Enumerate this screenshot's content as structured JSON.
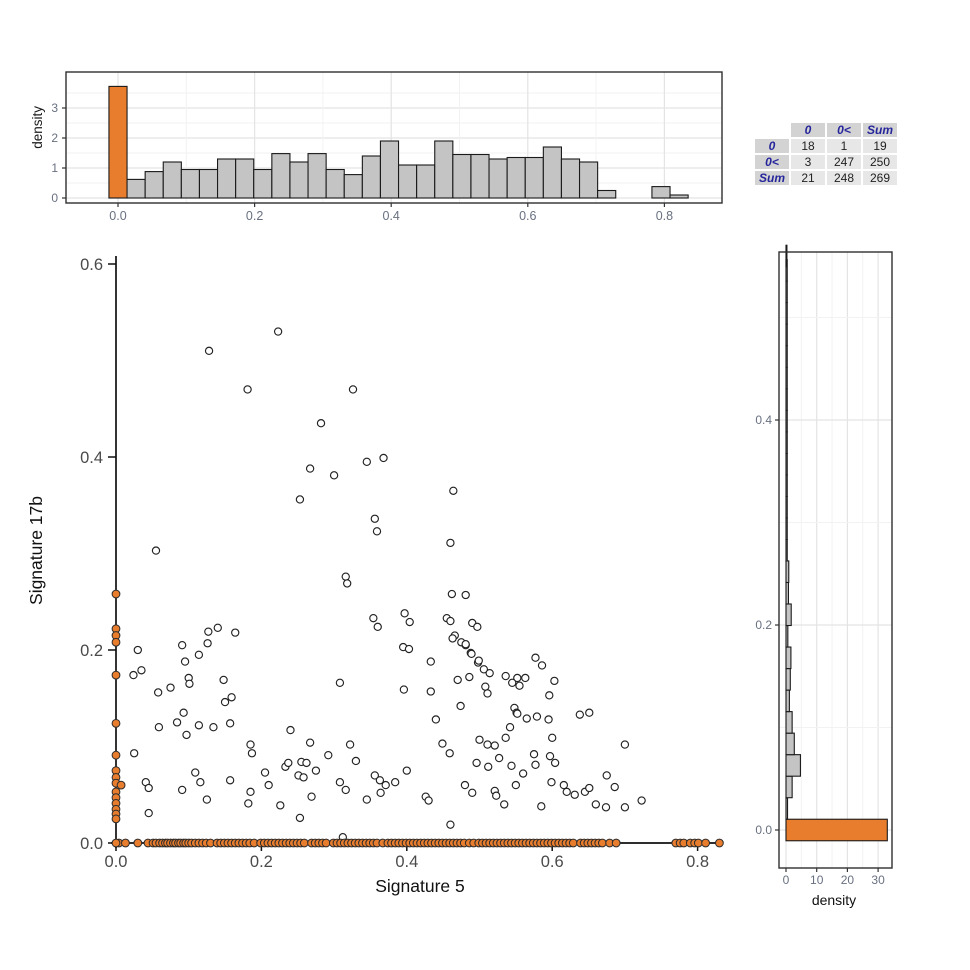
{
  "colors": {
    "orange": "#E87D2E",
    "gray_fill": "#C4C4C4",
    "bar_stroke": "#1A1A1A",
    "axis_line": "#111111",
    "panel_border": "#2F2F2F",
    "grid_major": "#E4E4E4",
    "grid_minor": "#F2F2F2",
    "tick_text": "#687080",
    "table_header_bg": "#D3D3D3",
    "table_cell_bg": "#E7E7E7",
    "table_header_text": "#26269C"
  },
  "table": {
    "corner": "",
    "col_headers": [
      "0",
      "0<",
      "Sum"
    ],
    "rows": [
      {
        "header": "0",
        "cells": [
          "18",
          "1",
          "19"
        ]
      },
      {
        "header": "0<",
        "cells": [
          "3",
          "247",
          "250"
        ]
      },
      {
        "header": "Sum",
        "cells": [
          "21",
          "248",
          "269"
        ]
      }
    ]
  },
  "chart_data": [
    {
      "id": "top_marginal_histogram",
      "type": "bar",
      "role": "marginal-density-of-x",
      "xlabel": "",
      "ylabel": "density",
      "x_ticks": [
        0.0,
        0.2,
        0.4,
        0.6,
        0.8
      ],
      "y_ticks": [
        0,
        1,
        2,
        3
      ],
      "xlim": [
        -0.03,
        0.885
      ],
      "ylim": [
        0,
        3.9
      ],
      "bin_start": -0.01325,
      "binwidth": 0.0265,
      "highlight_index": 0,
      "values": [
        3.72,
        0.62,
        0.88,
        1.2,
        0.95,
        0.95,
        1.3,
        1.3,
        0.95,
        1.48,
        1.2,
        1.48,
        0.95,
        0.78,
        1.4,
        1.9,
        1.1,
        1.1,
        1.9,
        1.45,
        1.45,
        1.3,
        1.35,
        1.35,
        1.7,
        1.3,
        1.2,
        0.25,
        0.0,
        0.0,
        0.38,
        0.1
      ]
    },
    {
      "id": "scatter",
      "type": "scatter",
      "xlabel": "Signature 5",
      "ylabel": "Signature 17b",
      "x_ticks": [
        0.0,
        0.2,
        0.4,
        0.6,
        0.8
      ],
      "y_ticks": [
        0.0,
        0.2,
        0.4,
        0.6
      ],
      "xlim": [
        0,
        0.835
      ],
      "ylim": [
        0,
        0.61
      ],
      "point_style": {
        "open": "white fill, black outline",
        "zero": "orange filled"
      },
      "open_points": [
        [
          0.223,
          0.53
        ],
        [
          0.128,
          0.51
        ],
        [
          0.181,
          0.47
        ],
        [
          0.326,
          0.47
        ],
        [
          0.282,
          0.435
        ],
        [
          0.345,
          0.395
        ],
        [
          0.368,
          0.399
        ],
        [
          0.267,
          0.388
        ],
        [
          0.3,
          0.381
        ],
        [
          0.253,
          0.356
        ],
        [
          0.464,
          0.365
        ],
        [
          0.356,
          0.336
        ],
        [
          0.359,
          0.323
        ],
        [
          0.46,
          0.311
        ],
        [
          0.055,
          0.303
        ],
        [
          0.316,
          0.276
        ],
        [
          0.318,
          0.269
        ],
        [
          0.462,
          0.258
        ],
        [
          0.481,
          0.257
        ],
        [
          0.455,
          0.233
        ],
        [
          0.49,
          0.228
        ],
        [
          0.466,
          0.215
        ],
        [
          0.475,
          0.208
        ],
        [
          0.481,
          0.205
        ],
        [
          0.488,
          0.197
        ],
        [
          0.498,
          0.187
        ],
        [
          0.433,
          0.188
        ],
        [
          0.397,
          0.238
        ],
        [
          0.404,
          0.229
        ],
        [
          0.395,
          0.203
        ],
        [
          0.354,
          0.233
        ],
        [
          0.36,
          0.224
        ],
        [
          0.403,
          0.201
        ],
        [
          0.577,
          0.192
        ],
        [
          0.563,
          0.171
        ],
        [
          0.586,
          0.184
        ],
        [
          0.603,
          0.168
        ],
        [
          0.127,
          0.219
        ],
        [
          0.14,
          0.223
        ],
        [
          0.164,
          0.218
        ],
        [
          0.126,
          0.207
        ],
        [
          0.091,
          0.205
        ],
        [
          0.03,
          0.2
        ],
        [
          0.114,
          0.195
        ],
        [
          0.095,
          0.188
        ],
        [
          0.035,
          0.179
        ],
        [
          0.024,
          0.174
        ],
        [
          0.46,
          0.23
        ],
        [
          0.497,
          0.224
        ],
        [
          0.075,
          0.161
        ],
        [
          0.1,
          0.171
        ],
        [
          0.148,
          0.169
        ],
        [
          0.159,
          0.151
        ],
        [
          0.058,
          0.156
        ],
        [
          0.059,
          0.12
        ],
        [
          0.084,
          0.125
        ],
        [
          0.114,
          0.122
        ],
        [
          0.097,
          0.112
        ],
        [
          0.134,
          0.12
        ],
        [
          0.157,
          0.124
        ],
        [
          0.101,
          0.165
        ],
        [
          0.15,
          0.146
        ],
        [
          0.093,
          0.135
        ],
        [
          0.025,
          0.093
        ],
        [
          0.041,
          0.063
        ],
        [
          0.045,
          0.057
        ],
        [
          0.109,
          0.073
        ],
        [
          0.116,
          0.063
        ],
        [
          0.091,
          0.055
        ],
        [
          0.125,
          0.045
        ],
        [
          0.157,
          0.065
        ],
        [
          0.185,
          0.102
        ],
        [
          0.187,
          0.093
        ],
        [
          0.205,
          0.073
        ],
        [
          0.233,
          0.079
        ],
        [
          0.237,
          0.083
        ],
        [
          0.255,
          0.084
        ],
        [
          0.262,
          0.083
        ],
        [
          0.251,
          0.07
        ],
        [
          0.258,
          0.068
        ],
        [
          0.269,
          0.048
        ],
        [
          0.253,
          0.026
        ],
        [
          0.185,
          0.053
        ],
        [
          0.182,
          0.041
        ],
        [
          0.226,
          0.039
        ],
        [
          0.24,
          0.117
        ],
        [
          0.267,
          0.104
        ],
        [
          0.292,
          0.091
        ],
        [
          0.322,
          0.102
        ],
        [
          0.308,
          0.063
        ],
        [
          0.316,
          0.055
        ],
        [
          0.356,
          0.07
        ],
        [
          0.363,
          0.065
        ],
        [
          0.384,
          0.063
        ],
        [
          0.364,
          0.052
        ],
        [
          0.371,
          0.06
        ],
        [
          0.312,
          0.006
        ],
        [
          0.308,
          0.166
        ],
        [
          0.396,
          0.159
        ],
        [
          0.426,
          0.048
        ],
        [
          0.43,
          0.044
        ],
        [
          0.46,
          0.019
        ],
        [
          0.045,
          0.031
        ],
        [
          0.47,
          0.169
        ],
        [
          0.486,
          0.172
        ],
        [
          0.508,
          0.162
        ],
        [
          0.536,
          0.173
        ],
        [
          0.552,
          0.171
        ],
        [
          0.555,
          0.163
        ],
        [
          0.596,
          0.153
        ],
        [
          0.474,
          0.142
        ],
        [
          0.548,
          0.14
        ],
        [
          0.551,
          0.135
        ],
        [
          0.542,
          0.12
        ],
        [
          0.536,
          0.109
        ],
        [
          0.579,
          0.131
        ],
        [
          0.638,
          0.133
        ],
        [
          0.651,
          0.135
        ],
        [
          0.6,
          0.109
        ],
        [
          0.449,
          0.103
        ],
        [
          0.459,
          0.093
        ],
        [
          0.5,
          0.107
        ],
        [
          0.511,
          0.102
        ],
        [
          0.521,
          0.101
        ],
        [
          0.527,
          0.088
        ],
        [
          0.496,
          0.083
        ],
        [
          0.512,
          0.079
        ],
        [
          0.544,
          0.08
        ],
        [
          0.575,
          0.092
        ],
        [
          0.577,
          0.081
        ],
        [
          0.597,
          0.09
        ],
        [
          0.604,
          0.083
        ],
        [
          0.599,
          0.063
        ],
        [
          0.616,
          0.06
        ],
        [
          0.62,
          0.053
        ],
        [
          0.631,
          0.05
        ],
        [
          0.645,
          0.053
        ],
        [
          0.651,
          0.057
        ],
        [
          0.675,
          0.07
        ],
        [
          0.686,
          0.058
        ],
        [
          0.7,
          0.037
        ],
        [
          0.674,
          0.037
        ],
        [
          0.66,
          0.04
        ],
        [
          0.585,
          0.038
        ],
        [
          0.521,
          0.054
        ],
        [
          0.523,
          0.049
        ],
        [
          0.534,
          0.04
        ],
        [
          0.7,
          0.102
        ],
        [
          0.723,
          0.044
        ],
        [
          0.481,
          0.206
        ],
        [
          0.463,
          0.212
        ],
        [
          0.489,
          0.196
        ],
        [
          0.499,
          0.189
        ],
        [
          0.506,
          0.18
        ],
        [
          0.514,
          0.176
        ],
        [
          0.545,
          0.166
        ],
        [
          0.511,
          0.155
        ],
        [
          0.565,
          0.129
        ],
        [
          0.595,
          0.128
        ],
        [
          0.552,
          0.134
        ],
        [
          0.433,
          0.157
        ],
        [
          0.21,
          0.06
        ],
        [
          0.275,
          0.075
        ],
        [
          0.33,
          0.085
        ],
        [
          0.345,
          0.045
        ],
        [
          0.4,
          0.075
        ],
        [
          0.48,
          0.06
        ],
        [
          0.49,
          0.052
        ],
        [
          0.55,
          0.06
        ],
        [
          0.56,
          0.072
        ],
        [
          0.44,
          0.128
        ]
      ],
      "orange_rug_x": [
        0.004,
        0.013,
        0.03,
        0.044,
        0.051,
        0.055,
        0.06,
        0.064,
        0.068,
        0.071,
        0.075,
        0.079,
        0.082,
        0.086,
        0.089,
        0.093,
        0.096,
        0.1,
        0.104,
        0.109,
        0.114,
        0.119,
        0.124,
        0.13,
        0.139,
        0.144,
        0.149,
        0.154,
        0.159,
        0.164,
        0.169,
        0.174,
        0.179,
        0.184,
        0.19,
        0.199,
        0.204,
        0.209,
        0.214,
        0.219,
        0.224,
        0.229,
        0.234,
        0.239,
        0.244,
        0.249,
        0.254,
        0.259,
        0.269,
        0.274,
        0.279,
        0.284,
        0.289,
        0.299,
        0.304,
        0.309,
        0.314,
        0.319,
        0.324,
        0.329,
        0.334,
        0.339,
        0.344,
        0.349,
        0.354,
        0.359,
        0.367,
        0.374,
        0.379,
        0.384,
        0.389,
        0.394,
        0.399,
        0.404,
        0.409,
        0.414,
        0.419,
        0.424,
        0.429,
        0.434,
        0.439,
        0.444,
        0.449,
        0.454,
        0.459,
        0.464,
        0.469,
        0.474,
        0.479,
        0.486,
        0.492,
        0.499,
        0.504,
        0.509,
        0.514,
        0.519,
        0.524,
        0.529,
        0.534,
        0.539,
        0.544,
        0.549,
        0.554,
        0.559,
        0.564,
        0.569,
        0.574,
        0.579,
        0.584,
        0.589,
        0.594,
        0.599,
        0.604,
        0.609,
        0.614,
        0.619,
        0.624,
        0.629,
        0.639,
        0.644,
        0.649,
        0.654,
        0.659,
        0.664,
        0.669,
        0.679,
        0.688,
        0.77,
        0.776,
        0.781,
        0.79,
        0.796,
        0.801,
        0.811,
        0.83
      ],
      "orange_axis_y": [
        0.258,
        0.222,
        0.215,
        0.208,
        0.174,
        0.124,
        0.091,
        0.075,
        0.068,
        0.062,
        0.053,
        0.047,
        0.041,
        0.035,
        0.03,
        0.025
      ],
      "orange_extra_points": [
        [
          0.0,
          0.0
        ],
        [
          0.007,
          0.06
        ]
      ]
    },
    {
      "id": "right_marginal_histogram",
      "type": "bar",
      "role": "marginal-density-of-y",
      "orientation": "horizontal",
      "xlabel": "density",
      "ylabel": "",
      "x_ticks": [
        0,
        10,
        20,
        30
      ],
      "y_ticks": [
        0.0,
        0.2,
        0.4
      ],
      "binwidth": 0.021,
      "highlight_index": 0,
      "bins": [
        [
          0.0,
          33.0
        ],
        [
          0.021,
          0.5
        ],
        [
          0.042,
          2.0
        ],
        [
          0.063,
          4.7
        ],
        [
          0.084,
          2.7
        ],
        [
          0.105,
          2.0
        ],
        [
          0.126,
          1.1
        ],
        [
          0.147,
          1.4
        ],
        [
          0.168,
          1.6
        ],
        [
          0.189,
          0.6
        ],
        [
          0.21,
          1.7
        ],
        [
          0.231,
          0.8
        ],
        [
          0.252,
          0.9
        ],
        [
          0.273,
          0.4
        ],
        [
          0.294,
          0.4
        ],
        [
          0.315,
          0.4
        ],
        [
          0.336,
          0.4
        ],
        [
          0.357,
          0.4
        ],
        [
          0.378,
          0.4
        ],
        [
          0.399,
          0.4
        ],
        [
          0.42,
          0.4
        ],
        [
          0.441,
          0.4
        ],
        [
          0.462,
          0.4
        ],
        [
          0.483,
          0.4
        ],
        [
          0.504,
          0.4
        ],
        [
          0.525,
          0.4
        ],
        [
          0.546,
          0.4
        ],
        [
          0.56,
          0.3
        ]
      ]
    }
  ]
}
